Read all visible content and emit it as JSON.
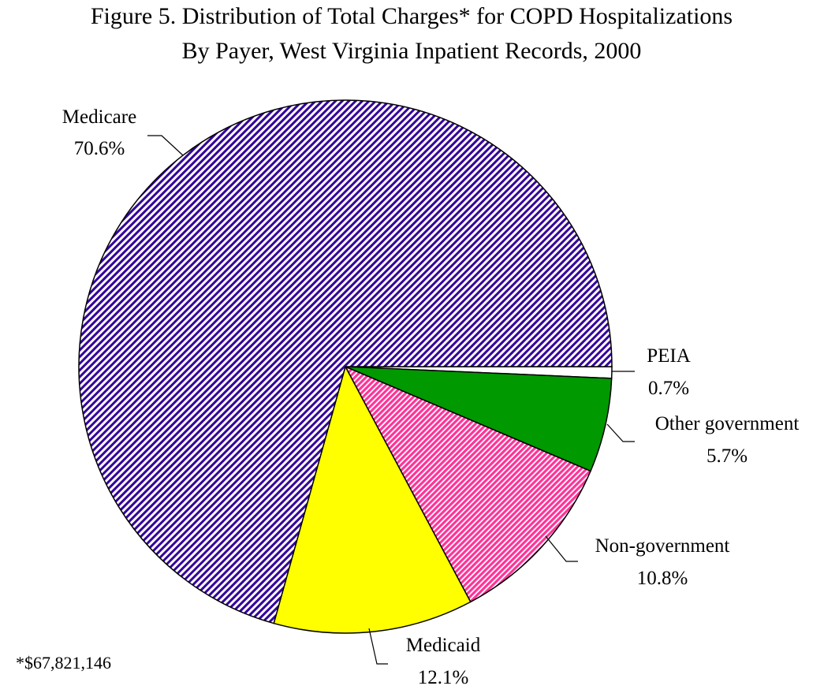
{
  "chart_data": {
    "type": "pie",
    "title": "Figure 5.  Distribution of Total Charges*  for COPD Hospitalizations",
    "subtitle": "By Payer, West Virginia Inpatient Records, 2000",
    "footnote": "*$67,821,146",
    "slices": [
      {
        "label": "PEIA",
        "value": 0.7,
        "value_label": "0.7%",
        "color": "#ffffff"
      },
      {
        "label": "Other government",
        "value": 5.7,
        "value_label": "5.7%",
        "color": "#009900"
      },
      {
        "label": "Non-government",
        "value": 10.8,
        "value_label": "10.8%",
        "color": "#ff3399",
        "pattern": "diagonal-hatch-white"
      },
      {
        "label": "Medicaid",
        "value": 12.1,
        "value_label": "12.1%",
        "color": "#ffff00"
      },
      {
        "label": "Medicare",
        "value": 70.6,
        "value_label": "70.6%",
        "color": "#330099",
        "pattern": "diagonal-hatch-white"
      }
    ]
  }
}
